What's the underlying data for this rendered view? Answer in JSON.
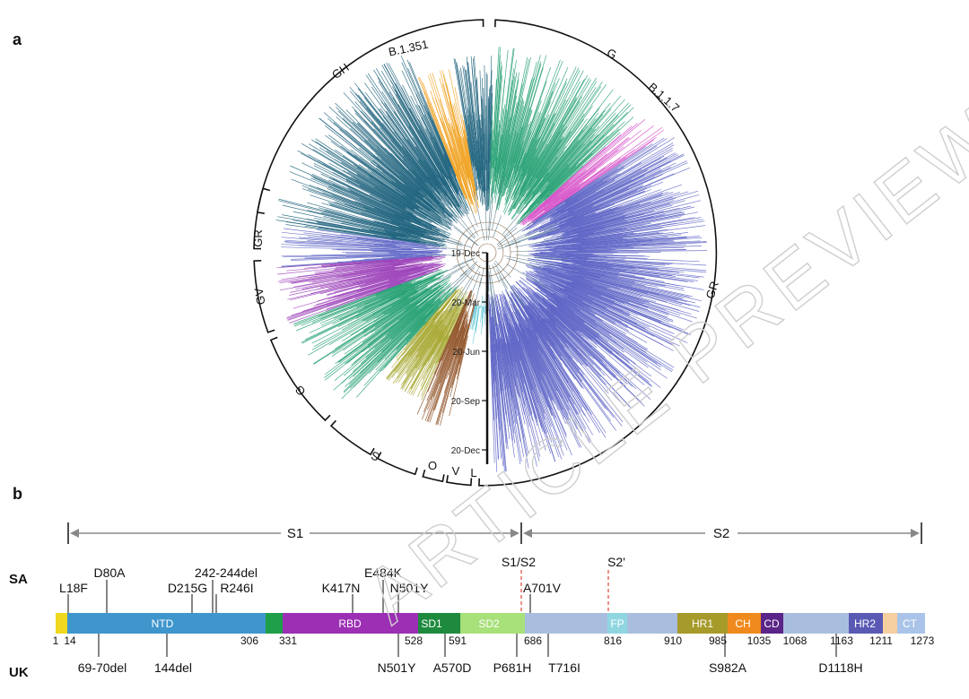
{
  "panel_a": {
    "letter": "a",
    "clades": [
      {
        "label": "GH"
      },
      {
        "label": "B.1.351"
      },
      {
        "label": "G"
      },
      {
        "label": "B.1.1.7"
      },
      {
        "label": "GR"
      },
      {
        "label": "GR"
      },
      {
        "label": "GV"
      },
      {
        "label": "G"
      },
      {
        "label": "S"
      },
      {
        "label": "O"
      },
      {
        "label": "V"
      },
      {
        "label": "L"
      }
    ],
    "time_axis": [
      "19-Dec",
      "20-Mar",
      "20-Jun",
      "20-Sep",
      "20-Dec"
    ],
    "colors": {
      "GH": "#1a5f7a",
      "B.1.351": "#f0a01c",
      "G": "#1e9e6e",
      "B.1.1.7": "#d64fc8",
      "GR": "#5b62c4",
      "GV": "#9b3fb8",
      "S": "#a3a52a",
      "V": "#8b4a1c",
      "L": "#5fc8d8"
    }
  },
  "panel_b": {
    "letter": "b",
    "regions": {
      "s1": "S1",
      "s2": "S2"
    },
    "cleavage": {
      "s1s2": "S1/S2",
      "s2prime": "S2'"
    },
    "rows": {
      "sa": "SA",
      "uk": "UK"
    },
    "domains": [
      {
        "label": "",
        "color": "#f0d81e"
      },
      {
        "label": "NTD",
        "color": "#3f96cc"
      },
      {
        "label": "",
        "color": "#1ea04a"
      },
      {
        "label": "RBD",
        "color": "#9c2fb4"
      },
      {
        "label": "SD1",
        "color": "#1e8a3e"
      },
      {
        "label": "SD2",
        "color": "#a8e07a"
      },
      {
        "label": "",
        "color": "#a9bedf"
      },
      {
        "label": "FP",
        "color": "#8fd6e0"
      },
      {
        "label": "",
        "color": "#a9bedf"
      },
      {
        "label": "HR1",
        "color": "#a69a2a"
      },
      {
        "label": "CH",
        "color": "#f08a1e"
      },
      {
        "label": "CD",
        "color": "#5a2488"
      },
      {
        "label": "",
        "color": "#a9bedf"
      },
      {
        "label": "HR2",
        "color": "#5a5ab4"
      },
      {
        "label": "",
        "color": "#f5cfa0"
      },
      {
        "label": "CT",
        "color": "#a9c4e8"
      }
    ],
    "positions": [
      "1",
      "14",
      "306",
      "331",
      "528",
      "591",
      "686",
      "816",
      "910",
      "985",
      "1035",
      "1068",
      "1163",
      "1211",
      "1273"
    ],
    "sa_mutations": [
      "L18F",
      "D80A",
      "D215G",
      "242-244del",
      "R246I",
      "K417N",
      "E484K",
      "N501Y",
      "A701V"
    ],
    "uk_mutations": [
      "69-70del",
      "144del",
      "N501Y",
      "A570D",
      "P681H",
      "T716I",
      "S982A",
      "D1118H"
    ]
  },
  "watermark": "ARTICLE PREVIEW"
}
